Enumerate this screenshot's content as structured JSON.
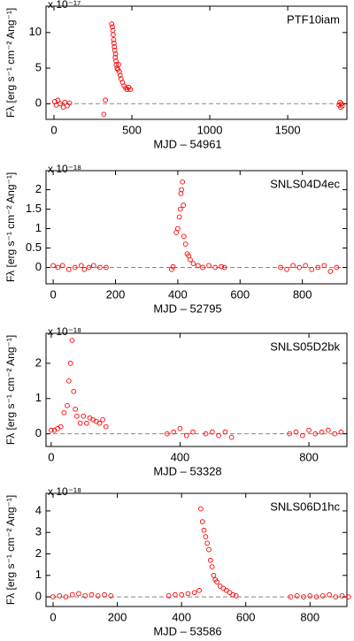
{
  "chart_data": [
    {
      "type": "scatter",
      "title": "PTF10iam",
      "xlabel": "MJD – 54961",
      "ylabel": "Fλ [erg s⁻¹ cm⁻² Ang⁻¹]",
      "scale_label": "x 10⁻¹⁷",
      "color": "#ff0000",
      "hline": 0,
      "xlim": [
        -51,
        1880
      ],
      "ylim": [
        -2.2,
        13.7
      ],
      "xticks": [
        0,
        500,
        1000,
        1500
      ],
      "yticks": [
        0,
        5,
        10
      ],
      "x": [
        5,
        15,
        25,
        40,
        60,
        70,
        85,
        100,
        320,
        330,
        370,
        375,
        378,
        380,
        383,
        385,
        388,
        390,
        393,
        395,
        398,
        400,
        405,
        410,
        415,
        420,
        425,
        430,
        440,
        450,
        460,
        470,
        480,
        490,
        1830,
        1835,
        1840,
        1845,
        1850
      ],
      "y": [
        0.3,
        -0.2,
        0.5,
        0,
        -0.5,
        0.2,
        -0.3,
        0.1,
        -1.5,
        0.5,
        11.2,
        10.8,
        10.3,
        9.7,
        9.0,
        8.5,
        8.0,
        7.5,
        6.5,
        7.0,
        6.0,
        5.5,
        5.0,
        4.8,
        5.5,
        4.5,
        4.0,
        3.5,
        3.0,
        2.5,
        2.2,
        2.0,
        2.3,
        2.0,
        -0.2,
        0.2,
        -0.5,
        0,
        -0.3
      ]
    },
    {
      "type": "scatter",
      "title": "SNLS04D4ec",
      "xlabel": "MJD – 52795",
      "ylabel": "Fλ [erg s⁻¹ cm⁻² Ang⁻¹]",
      "scale_label": "x 10⁻¹⁸",
      "color": "#ff0000",
      "hline": 0,
      "xlim": [
        -23,
        943
      ],
      "ylim": [
        -0.42,
        2.49
      ],
      "xticks": [
        0,
        200,
        400,
        600,
        800
      ],
      "yticks": [
        0,
        0.5,
        1,
        1.5,
        2
      ],
      "x": [
        0,
        15,
        30,
        50,
        70,
        90,
        100,
        115,
        130,
        150,
        170,
        380,
        385,
        395,
        400,
        405,
        408,
        410,
        412,
        415,
        418,
        420,
        425,
        430,
        435,
        440,
        450,
        465,
        480,
        500,
        520,
        540,
        550,
        730,
        750,
        770,
        790,
        810,
        830,
        850,
        870,
        890,
        910
      ],
      "y": [
        0.05,
        0,
        0.05,
        -0.05,
        0,
        0.05,
        -0.05,
        0,
        0.05,
        0,
        0,
        -0.05,
        0.02,
        0.9,
        1.0,
        1.3,
        1.5,
        1.9,
        2.0,
        2.2,
        1.6,
        0.8,
        0.6,
        0.35,
        0.3,
        0.2,
        0.1,
        0.05,
        0,
        0.05,
        0,
        0.02,
        0,
        0,
        -0.05,
        0.05,
        0,
        0.05,
        -0.05,
        0,
        0.05,
        -0.1,
        0
      ]
    },
    {
      "type": "scatter",
      "title": "SNLS05D2bk",
      "xlabel": "MJD – 53328",
      "ylabel": "Fλ [erg s⁻¹ cm⁻² Ang⁻¹]",
      "scale_label": "x 10⁻¹⁸",
      "color": "#ff0000",
      "hline": 0,
      "xlim": [
        -16,
        918
      ],
      "ylim": [
        -0.36,
        2.85
      ],
      "xticks": [
        0,
        400,
        800
      ],
      "yticks": [
        0,
        1,
        2
      ],
      "x": [
        0,
        10,
        20,
        30,
        40,
        50,
        55,
        60,
        65,
        70,
        75,
        80,
        90,
        100,
        110,
        120,
        130,
        140,
        150,
        160,
        170,
        360,
        380,
        400,
        420,
        440,
        480,
        500,
        520,
        540,
        560,
        740,
        760,
        780,
        800,
        820,
        840,
        860,
        880,
        900
      ],
      "y": [
        0.1,
        0.1,
        0.15,
        0.2,
        0.6,
        0.8,
        1.5,
        2.0,
        2.65,
        1.2,
        0.7,
        0.5,
        0.3,
        0.5,
        0.3,
        0.45,
        0.4,
        0.35,
        0.3,
        0.4,
        0.2,
        0,
        0.05,
        0.15,
        -0.05,
        0.05,
        0,
        0.05,
        -0.05,
        0.05,
        -0.1,
        0,
        0.05,
        -0.05,
        0.1,
        0,
        0.05,
        0.1,
        0,
        0.05
      ]
    },
    {
      "type": "scatter",
      "title": "SNLS06D1hc",
      "xlabel": "MJD – 53586",
      "ylabel": "Fλ [erg s⁻¹ cm⁻² Ang⁻¹]",
      "scale_label": "x 10⁻¹⁸",
      "color": "#ff0000",
      "hline": 0,
      "xlim": [
        -22,
        915
      ],
      "ylim": [
        -0.45,
        4.82
      ],
      "xticks": [
        0,
        200,
        400,
        600,
        800
      ],
      "yticks": [
        0,
        1,
        2,
        3,
        4
      ],
      "x": [
        0,
        20,
        40,
        60,
        80,
        100,
        120,
        140,
        160,
        180,
        360,
        380,
        400,
        420,
        440,
        455,
        460,
        465,
        470,
        475,
        480,
        485,
        490,
        495,
        500,
        505,
        510,
        520,
        530,
        540,
        550,
        560,
        570,
        740,
        760,
        780,
        800,
        820,
        840,
        860,
        880,
        900,
        920
      ],
      "y": [
        0,
        0.05,
        0,
        0.1,
        0.15,
        0.05,
        0.1,
        0.05,
        0.1,
        0.05,
        0.05,
        0.1,
        0.1,
        0.15,
        0.2,
        0.3,
        4.1,
        3.5,
        3.1,
        2.8,
        2.5,
        2.2,
        1.7,
        1.4,
        1.0,
        0.8,
        0.7,
        0.5,
        0.4,
        0.3,
        0.2,
        0.1,
        0.05,
        0,
        0.05,
        0,
        0.05,
        0,
        0.05,
        0.1,
        0,
        0.05,
        0
      ]
    }
  ]
}
